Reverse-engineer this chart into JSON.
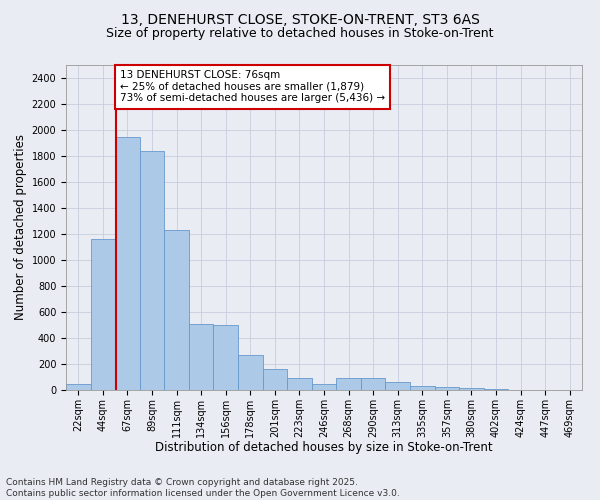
{
  "title_line1": "13, DENEHURST CLOSE, STOKE-ON-TRENT, ST3 6AS",
  "title_line2": "Size of property relative to detached houses in Stoke-on-Trent",
  "xlabel": "Distribution of detached houses by size in Stoke-on-Trent",
  "ylabel": "Number of detached properties",
  "categories": [
    "22sqm",
    "44sqm",
    "67sqm",
    "89sqm",
    "111sqm",
    "134sqm",
    "156sqm",
    "178sqm",
    "201sqm",
    "223sqm",
    "246sqm",
    "268sqm",
    "290sqm",
    "313sqm",
    "335sqm",
    "357sqm",
    "380sqm",
    "402sqm",
    "424sqm",
    "447sqm",
    "469sqm"
  ],
  "values": [
    50,
    1160,
    1950,
    1840,
    1230,
    510,
    500,
    270,
    160,
    90,
    50,
    90,
    90,
    60,
    30,
    20,
    15,
    5,
    3,
    2,
    2
  ],
  "bar_color": "#adc9e8",
  "bar_edge_color": "#6699cc",
  "grid_color": "#c8cede",
  "background_color": "#eaecf4",
  "annotation_text": "13 DENEHURST CLOSE: 76sqm\n← 25% of detached houses are smaller (1,879)\n73% of semi-detached houses are larger (5,436) →",
  "annotation_box_color": "#ffffff",
  "annotation_box_edge": "#cc0000",
  "vline_x_index": 1.55,
  "vline_color": "#cc0000",
  "ylim": [
    0,
    2500
  ],
  "yticks": [
    0,
    200,
    400,
    600,
    800,
    1000,
    1200,
    1400,
    1600,
    1800,
    2000,
    2200,
    2400
  ],
  "footnote": "Contains HM Land Registry data © Crown copyright and database right 2025.\nContains public sector information licensed under the Open Government Licence v3.0.",
  "title_fontsize": 10,
  "subtitle_fontsize": 9,
  "tick_fontsize": 7,
  "xlabel_fontsize": 8.5,
  "ylabel_fontsize": 8.5,
  "annotation_fontsize": 7.5,
  "footnote_fontsize": 6.5
}
